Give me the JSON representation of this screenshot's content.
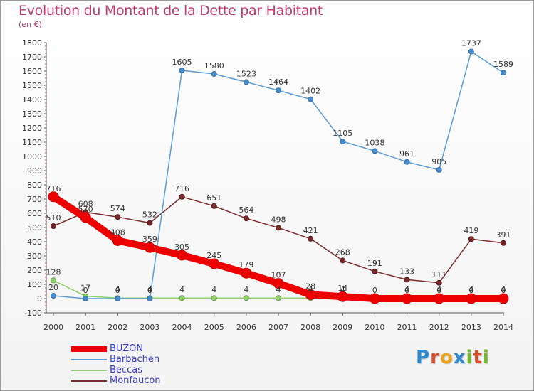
{
  "header": {
    "title": "Evolution du Montant de la Dette par Habitant",
    "subtitle": "(en €)"
  },
  "logo": {
    "text": "Proxiti",
    "letters": [
      "P",
      "r",
      "o",
      "x",
      "i",
      "t",
      "i"
    ],
    "colors": [
      "#2e8bcf",
      "#d94f2a",
      "#e8a21c",
      "#2e8bcf",
      "#73b82a",
      "#d94f2a",
      "#73b82a"
    ]
  },
  "chart_data": {
    "type": "line",
    "title": "Evolution du Montant de la Dette par Habitant",
    "subtitle": "(en €)",
    "xlabel": "",
    "ylabel": "",
    "x": [
      2000,
      2001,
      2002,
      2003,
      2004,
      2005,
      2006,
      2007,
      2008,
      2009,
      2010,
      2011,
      2012,
      2013,
      2014
    ],
    "ylim": [
      -100,
      1800
    ],
    "yticks": [
      -100,
      0,
      100,
      200,
      300,
      400,
      500,
      600,
      700,
      800,
      900,
      1000,
      1100,
      1200,
      1300,
      1400,
      1500,
      1600,
      1700,
      1800
    ],
    "grid": false,
    "legend_position": "bottom-left",
    "series": [
      {
        "name": "BUZON",
        "color": "#ee0000",
        "values": [
          716,
          570,
          408,
          359,
          305,
          245,
          179,
          107,
          28,
          14,
          0,
          0,
          0,
          0,
          0
        ],
        "labels": [
          "716",
          "570",
          "408",
          "359",
          "305",
          "245",
          "179",
          "107",
          "28",
          "14",
          "0",
          "0",
          "0",
          "0",
          "0"
        ]
      },
      {
        "name": "Barbachen",
        "color": "#5b9bd5",
        "values": [
          20,
          0,
          0,
          0,
          1605,
          1580,
          1523,
          1464,
          1402,
          1105,
          1038,
          961,
          905,
          1737,
          1589
        ],
        "labels": [
          "20",
          "0",
          "0",
          "0",
          "1605",
          "1580",
          "1523",
          "1464",
          "1402",
          "1105",
          "1038",
          "961",
          "905",
          "1737",
          "1589"
        ]
      },
      {
        "name": "Beccas",
        "color": "#8ed16a",
        "values": [
          128,
          17,
          4,
          4,
          4,
          4,
          4,
          4,
          4,
          4,
          3,
          4,
          4,
          4,
          4
        ],
        "labels": [
          "128",
          "17",
          "4",
          "4",
          "4",
          "4",
          "4",
          "4",
          "4",
          "4",
          "",
          "4",
          "4",
          "4",
          "4"
        ]
      },
      {
        "name": "Monfaucon",
        "color": "#7a2a2a",
        "values": [
          510,
          608,
          574,
          532,
          716,
          651,
          564,
          498,
          421,
          268,
          191,
          133,
          111,
          419,
          391
        ],
        "labels": [
          "510",
          "608",
          "574",
          "532",
          "716",
          "651",
          "564",
          "498",
          "421",
          "268",
          "191",
          "133",
          "111",
          "419",
          "391"
        ]
      }
    ]
  }
}
